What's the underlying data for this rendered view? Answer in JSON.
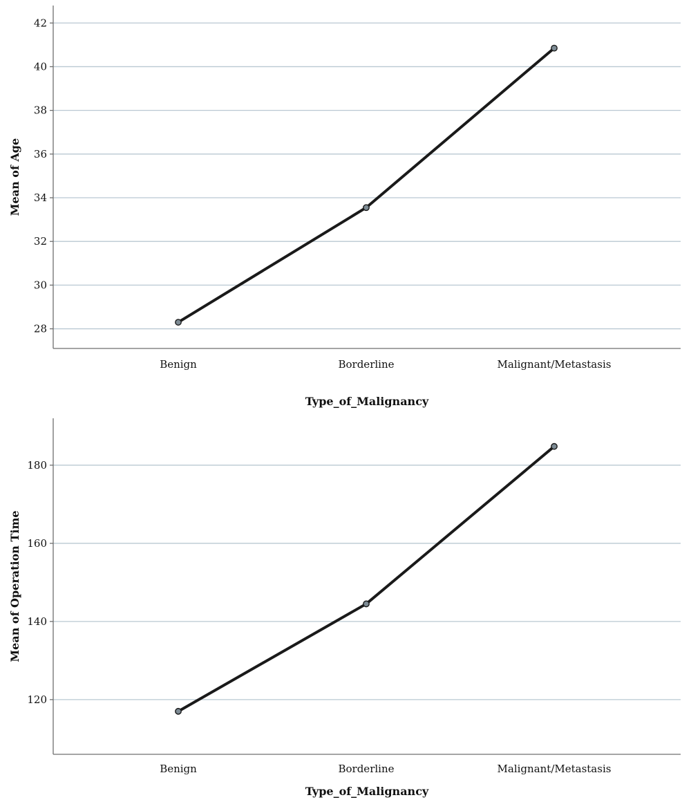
{
  "chart_data": [
    {
      "type": "line",
      "categories": [
        "Benign",
        "Borderline",
        "Malignant/Metastasis"
      ],
      "series": [
        {
          "values": [
            28.3,
            33.55,
            40.85
          ]
        }
      ],
      "xlabel": "Type_of_Malignancy",
      "ylabel": "Mean of Age",
      "ylim": [
        27.1,
        42.8
      ],
      "yticks": [
        28,
        30,
        32,
        34,
        36,
        38,
        40,
        42
      ],
      "grid": true,
      "line_color": "#1a1a1a",
      "marker_color": "#7d8b94",
      "grid_color": "#b9c8d2"
    },
    {
      "type": "line",
      "categories": [
        "Benign",
        "Borderline",
        "Malignant/Metastasis"
      ],
      "series": [
        {
          "values": [
            117,
            144.5,
            184.8
          ]
        }
      ],
      "xlabel": "Type_of_Malignancy",
      "ylabel": "Mean of Operation Time",
      "ylim": [
        106,
        192
      ],
      "yticks": [
        120,
        140,
        160,
        180
      ],
      "grid": true,
      "line_color": "#1a1a1a",
      "marker_color": "#7d8b94",
      "grid_color": "#b9c8d2"
    }
  ]
}
